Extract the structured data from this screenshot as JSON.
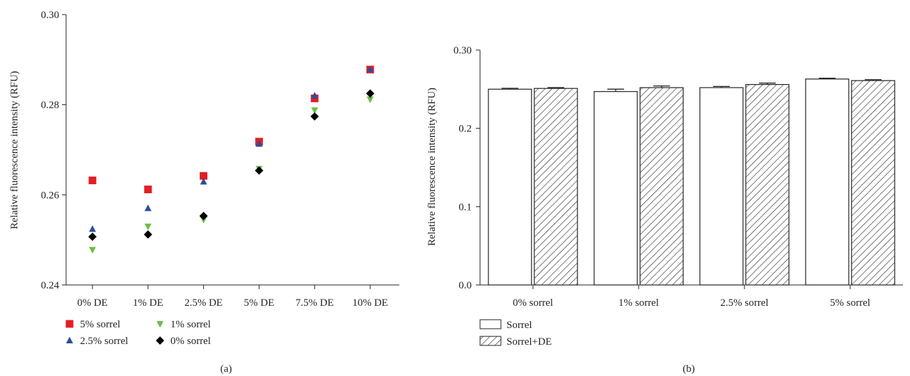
{
  "chart_data": [
    {
      "type": "scatter",
      "panel_label": "(a)",
      "title": "",
      "xlabel": "",
      "ylabel": "Relative fluorescence intensity (RFU)",
      "categories": [
        "0% DE",
        "1% DE",
        "2.5% DE",
        "5% DE",
        "7.5% DE",
        "10% DE"
      ],
      "ylim": [
        0.24,
        0.3
      ],
      "yticks": [
        "0.24",
        "0.26",
        "0.28",
        "0.30"
      ],
      "grid": false,
      "legend_position": "bottom-left",
      "series": [
        {
          "name": "5% sorrel",
          "marker": "square",
          "color": "#e31e24",
          "values": [
            0.2632,
            0.2612,
            0.2642,
            0.2718,
            0.2814,
            0.2878
          ]
        },
        {
          "name": "1% sorrel",
          "marker": "triangle-down",
          "color": "#6cbd45",
          "values": [
            0.2478,
            0.253,
            0.2545,
            0.2658,
            0.2788,
            0.2812
          ]
        },
        {
          "name": "2.5% sorrel",
          "marker": "triangle-up",
          "color": "#2e4d9b",
          "values": [
            0.2524,
            0.257,
            0.2629,
            0.2713,
            0.282,
            0.2878
          ]
        },
        {
          "name": "0% sorrel",
          "marker": "diamond",
          "color": "#000000",
          "values": [
            0.2507,
            0.2512,
            0.2553,
            0.2654,
            0.2774,
            0.2825
          ]
        }
      ]
    },
    {
      "type": "bar",
      "panel_label": "(b)",
      "title": "",
      "xlabel": "",
      "ylabel": "Relative fluorescence intensity (RFU)",
      "categories": [
        "0% sorrel",
        "1% sorrel",
        "2.5% sorrel",
        "5% sorrel"
      ],
      "ylim": [
        0.0,
        0.3
      ],
      "yticks": [
        "0.0",
        "0.1",
        "0.2",
        "0.30"
      ],
      "grid": false,
      "legend_position": "bottom-left",
      "series": [
        {
          "name": "Sorrel",
          "fill": "white",
          "values": [
            0.25,
            0.247,
            0.252,
            0.263
          ],
          "errors": [
            0.0012,
            0.003,
            0.0015,
            0.001
          ]
        },
        {
          "name": "Sorrel+DE",
          "fill": "hatched",
          "values": [
            0.251,
            0.252,
            0.256,
            0.261
          ],
          "errors": [
            0.001,
            0.0022,
            0.0018,
            0.0012
          ]
        }
      ]
    }
  ]
}
